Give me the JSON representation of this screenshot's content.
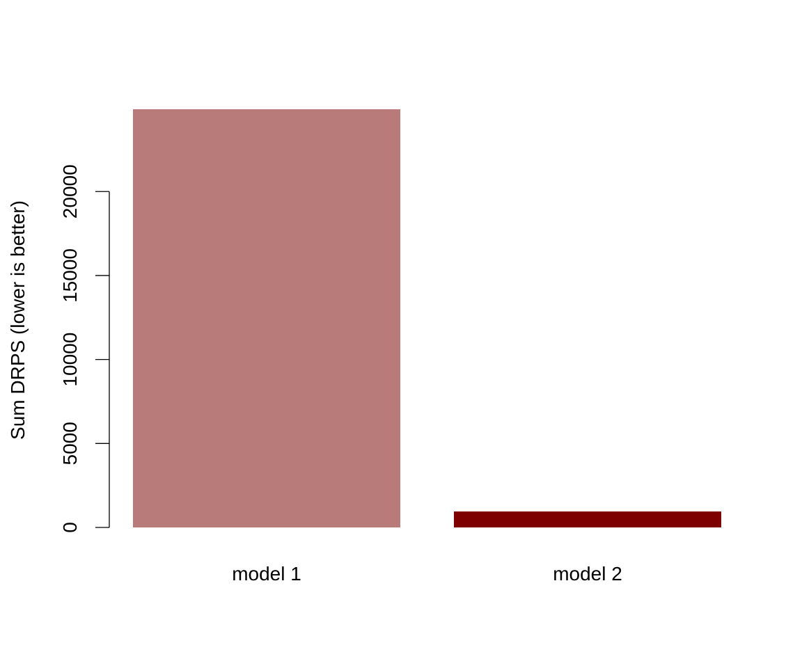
{
  "chart_data": {
    "type": "bar",
    "title": "",
    "xlabel": "",
    "ylabel": "Sum DRPS (lower is better)",
    "categories": [
      "model 1",
      "model 2"
    ],
    "values": [
      24900,
      950
    ],
    "colors": [
      "#b87b7a",
      "#7f0000"
    ],
    "ylim": [
      0,
      24900
    ],
    "yticks": [
      0,
      5000,
      10000,
      15000,
      20000
    ],
    "ytick_labels": [
      "0",
      "5000",
      "10000",
      "15000",
      "20000"
    ],
    "grid": false,
    "legend": "none"
  }
}
